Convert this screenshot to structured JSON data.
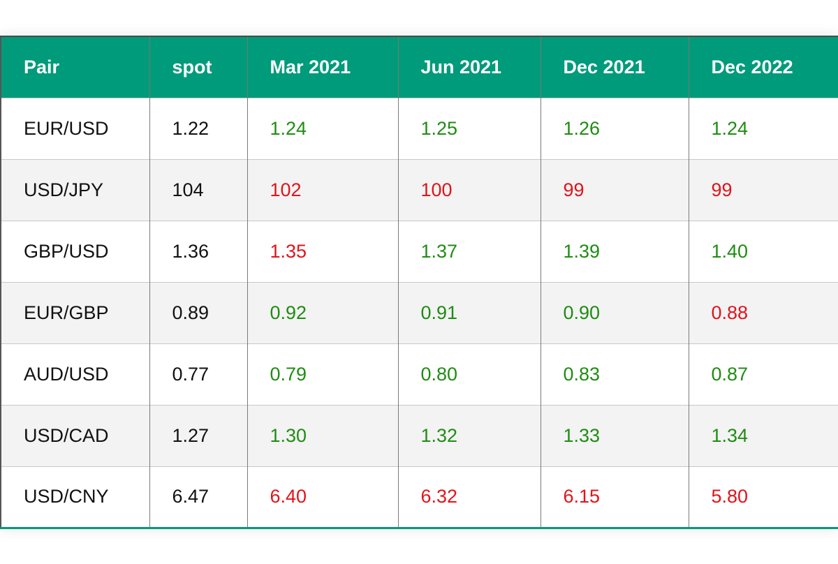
{
  "colors": {
    "header_bg": "#009b7a",
    "up": "#1f8c12",
    "down": "#e0141a",
    "text": "#111111"
  },
  "table": {
    "headers": [
      "Pair",
      "spot",
      "Mar 2021",
      "Jun 2021",
      "Dec 2021",
      "Dec 2022"
    ],
    "rows": [
      {
        "pair": "EUR/USD",
        "spot": "1.22",
        "cells": [
          {
            "value": "1.24",
            "trend": "up"
          },
          {
            "value": "1.25",
            "trend": "up"
          },
          {
            "value": "1.26",
            "trend": "up"
          },
          {
            "value": "1.24",
            "trend": "up"
          }
        ]
      },
      {
        "pair": "USD/JPY",
        "spot": "104",
        "cells": [
          {
            "value": "102",
            "trend": "down"
          },
          {
            "value": "100",
            "trend": "down"
          },
          {
            "value": "99",
            "trend": "down"
          },
          {
            "value": "99",
            "trend": "down"
          }
        ]
      },
      {
        "pair": "GBP/USD",
        "spot": "1.36",
        "cells": [
          {
            "value": "1.35",
            "trend": "down"
          },
          {
            "value": "1.37",
            "trend": "up"
          },
          {
            "value": "1.39",
            "trend": "up"
          },
          {
            "value": "1.40",
            "trend": "up"
          }
        ]
      },
      {
        "pair": "EUR/GBP",
        "spot": "0.89",
        "cells": [
          {
            "value": "0.92",
            "trend": "up"
          },
          {
            "value": "0.91",
            "trend": "up"
          },
          {
            "value": "0.90",
            "trend": "up"
          },
          {
            "value": "0.88",
            "trend": "down"
          }
        ]
      },
      {
        "pair": "AUD/USD",
        "spot": "0.77",
        "cells": [
          {
            "value": "0.79",
            "trend": "up"
          },
          {
            "value": "0.80",
            "trend": "up"
          },
          {
            "value": "0.83",
            "trend": "up"
          },
          {
            "value": "0.87",
            "trend": "up"
          }
        ]
      },
      {
        "pair": "USD/CAD",
        "spot": "1.27",
        "cells": [
          {
            "value": "1.30",
            "trend": "up"
          },
          {
            "value": "1.32",
            "trend": "up"
          },
          {
            "value": "1.33",
            "trend": "up"
          },
          {
            "value": "1.34",
            "trend": "up"
          }
        ]
      },
      {
        "pair": "USD/CNY",
        "spot": "6.47",
        "cells": [
          {
            "value": "6.40",
            "trend": "down"
          },
          {
            "value": "6.32",
            "trend": "down"
          },
          {
            "value": "6.15",
            "trend": "down"
          },
          {
            "value": "5.80",
            "trend": "down"
          }
        ]
      }
    ]
  }
}
